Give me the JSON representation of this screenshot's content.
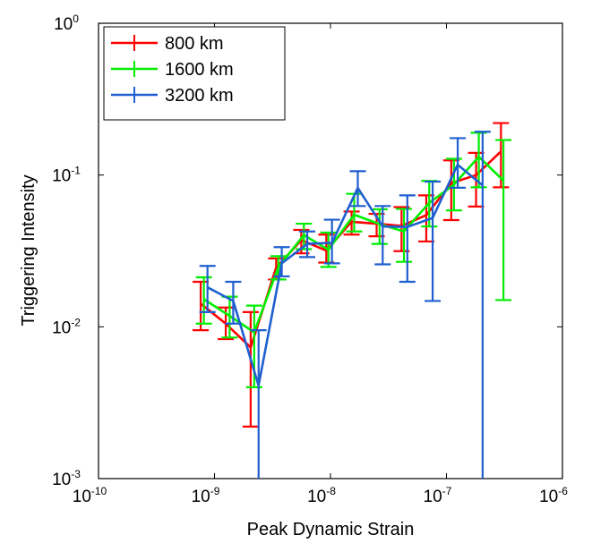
{
  "chart_data": {
    "type": "line",
    "subtype": "errorbar",
    "xlabel": "Peak Dynamic Strain",
    "ylabel": "Triggering Intensity",
    "xscale": "log",
    "yscale": "log",
    "xlim": [
      1e-10,
      1e-06
    ],
    "ylim": [
      0.001,
      1
    ],
    "x_ticks": [
      {
        "value": 1e-10,
        "base": "10",
        "exp": "-10"
      },
      {
        "value": 1e-09,
        "base": "10",
        "exp": "-9"
      },
      {
        "value": 1e-08,
        "base": "10",
        "exp": "-8"
      },
      {
        "value": 1e-07,
        "base": "10",
        "exp": "-7"
      },
      {
        "value": 1e-06,
        "base": "10",
        "exp": "-6"
      }
    ],
    "y_ticks": [
      {
        "value": 0.001,
        "base": "10",
        "exp": "-3"
      },
      {
        "value": 0.01,
        "base": "10",
        "exp": "-2"
      },
      {
        "value": 0.1,
        "base": "10",
        "exp": "-1"
      },
      {
        "value": 1,
        "base": "10",
        "exp": "0"
      }
    ],
    "grid": false,
    "legend_position": "top-left",
    "series": [
      {
        "name": "800 km",
        "color": "#ff0000",
        "points": [
          {
            "x": 7.6e-10,
            "y": 0.0142,
            "low": 0.0095,
            "high": 0.0198
          },
          {
            "x": 1.25e-09,
            "y": 0.0105,
            "low": 0.0083,
            "high": 0.0134
          },
          {
            "x": 2.05e-09,
            "y": 0.0073,
            "low": 0.0022,
            "high": 0.0125
          },
          {
            "x": 3.4e-09,
            "y": 0.0245,
            "low": 0.0205,
            "high": 0.0282
          },
          {
            "x": 5.6e-09,
            "y": 0.0372,
            "low": 0.0305,
            "high": 0.0435
          },
          {
            "x": 9.2e-09,
            "y": 0.0318,
            "low": 0.0265,
            "high": 0.0405
          },
          {
            "x": 1.52e-08,
            "y": 0.0492,
            "low": 0.0405,
            "high": 0.0575
          },
          {
            "x": 2.5e-08,
            "y": 0.0478,
            "low": 0.0395,
            "high": 0.0555
          },
          {
            "x": 4.1e-08,
            "y": 0.0462,
            "low": 0.0315,
            "high": 0.0615
          },
          {
            "x": 6.7e-08,
            "y": 0.0545,
            "low": 0.0365,
            "high": 0.0735
          },
          {
            "x": 1.1e-07,
            "y": 0.0885,
            "low": 0.0505,
            "high": 0.125
          },
          {
            "x": 1.8e-07,
            "y": 0.1,
            "low": 0.062,
            "high": 0.14
          },
          {
            "x": 2.95e-07,
            "y": 0.143,
            "low": 0.083,
            "high": 0.22
          }
        ]
      },
      {
        "name": "1600 km",
        "color": "#00ee00",
        "points": [
          {
            "x": 8.1e-10,
            "y": 0.0152,
            "low": 0.0105,
            "high": 0.0212
          },
          {
            "x": 1.35e-09,
            "y": 0.0118,
            "low": 0.0085,
            "high": 0.0158
          },
          {
            "x": 2.2e-09,
            "y": 0.0092,
            "low": 0.004,
            "high": 0.0138
          },
          {
            "x": 3.55e-09,
            "y": 0.0248,
            "low": 0.0205,
            "high": 0.0292
          },
          {
            "x": 5.9e-09,
            "y": 0.0402,
            "low": 0.0325,
            "high": 0.0478
          },
          {
            "x": 9.6e-09,
            "y": 0.0322,
            "low": 0.0248,
            "high": 0.0418
          },
          {
            "x": 1.6e-08,
            "y": 0.0548,
            "low": 0.0425,
            "high": 0.0752
          },
          {
            "x": 2.65e-08,
            "y": 0.0475,
            "low": 0.0352,
            "high": 0.0595
          },
          {
            "x": 4.3e-08,
            "y": 0.0425,
            "low": 0.0268,
            "high": 0.0598
          },
          {
            "x": 7.1e-08,
            "y": 0.0655,
            "low": 0.0458,
            "high": 0.0915
          },
          {
            "x": 1.16e-07,
            "y": 0.0865,
            "low": 0.0585,
            "high": 0.128
          },
          {
            "x": 1.9e-07,
            "y": 0.132,
            "low": 0.083,
            "high": 0.19
          },
          {
            "x": 3.1e-07,
            "y": 0.092,
            "low": 0.015,
            "high": 0.17
          }
        ]
      },
      {
        "name": "3200 km",
        "color": "#1f5fd0",
        "points": [
          {
            "x": 8.7e-10,
            "y": 0.0182,
            "low": 0.0125,
            "high": 0.0252
          },
          {
            "x": 1.45e-09,
            "y": 0.0148,
            "low": 0.0105,
            "high": 0.0198
          },
          {
            "x": 2.4e-09,
            "y": 0.0041,
            "low": 0.001,
            "high": 0.0095
          },
          {
            "x": 3.8e-09,
            "y": 0.0262,
            "low": 0.0215,
            "high": 0.0335
          },
          {
            "x": 6.3e-09,
            "y": 0.0352,
            "low": 0.0288,
            "high": 0.0425
          },
          {
            "x": 1.03e-08,
            "y": 0.0358,
            "low": 0.0262,
            "high": 0.0508
          },
          {
            "x": 1.72e-08,
            "y": 0.0822,
            "low": 0.0625,
            "high": 0.106
          },
          {
            "x": 2.82e-08,
            "y": 0.0458,
            "low": 0.0258,
            "high": 0.0625
          },
          {
            "x": 4.6e-08,
            "y": 0.0455,
            "low": 0.0198,
            "high": 0.0735
          },
          {
            "x": 7.6e-08,
            "y": 0.0522,
            "low": 0.0148,
            "high": 0.0905
          },
          {
            "x": 1.25e-07,
            "y": 0.117,
            "low": 0.0825,
            "high": 0.175
          },
          {
            "x": 2.05e-07,
            "y": 0.0855,
            "low": 0.001,
            "high": 0.193
          }
        ]
      }
    ]
  }
}
